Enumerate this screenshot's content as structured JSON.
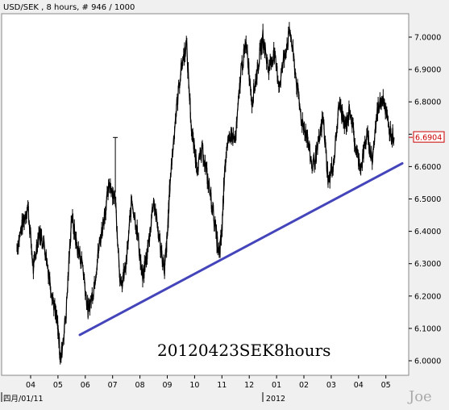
{
  "header": {
    "title": "USD/SEK , 8 hours, # 946 / 1000"
  },
  "annotation": {
    "caption": "20120423SEK8hours",
    "watermark": "Joe"
  },
  "colors": {
    "background": "#f0f0f0",
    "plot_background": "#ffffff",
    "price": "#000000",
    "trendline": "#4444bb",
    "last_price_box": "#cc0000"
  },
  "chart_data": {
    "type": "line",
    "title": "USD/SEK , 8 hours, # 946 / 1000",
    "xlabel": "",
    "ylabel": "",
    "ylim": [
      5.96,
      7.05
    ],
    "y_ticks": [
      "6.0000",
      "6.1000",
      "6.2000",
      "6.3000",
      "6.4000",
      "6.5000",
      "6.6000",
      "6.7000",
      "6.8000",
      "6.9000",
      "7.0000"
    ],
    "x_tick_labels": [
      "04",
      "05",
      "06",
      "07",
      "08",
      "09",
      "10",
      "11",
      "12",
      "01",
      "02",
      "03",
      "04",
      "05"
    ],
    "x_group_labels": [
      "四月/01/11",
      "2012"
    ],
    "last_price_label": "6.6904",
    "last_price": 6.6904,
    "grid": false,
    "series": [
      {
        "label": "USD/SEK",
        "x": [
          3.5,
          3.7,
          3.9,
          4.1,
          4.3,
          4.5,
          4.7,
          4.9,
          5.0,
          5.1,
          5.3,
          5.5,
          5.7,
          5.9,
          6.1,
          6.3,
          6.5,
          6.7,
          6.9,
          7.1,
          7.3,
          7.5,
          7.7,
          7.9,
          8.1,
          8.3,
          8.5,
          8.7,
          8.9,
          9.0,
          9.1,
          9.3,
          9.5,
          9.7,
          9.9,
          10.1,
          10.3,
          10.5,
          10.7,
          10.9,
          11.0,
          11.1,
          11.3,
          11.5,
          11.7,
          11.9,
          12.1,
          12.3,
          12.5,
          12.7,
          12.9,
          13.1,
          13.3,
          13.5,
          13.7,
          13.9,
          14.1,
          14.3,
          14.5,
          14.7,
          14.9,
          15.1,
          15.3,
          15.5,
          15.7,
          15.9,
          16.1,
          16.3,
          16.5,
          16.7,
          16.9,
          17.1,
          17.3
        ],
        "y": [
          6.35,
          6.42,
          6.48,
          6.28,
          6.4,
          6.36,
          6.25,
          6.15,
          6.1,
          6.0,
          6.15,
          6.45,
          6.35,
          6.3,
          6.15,
          6.22,
          6.35,
          6.45,
          6.55,
          6.5,
          6.22,
          6.3,
          6.5,
          6.4,
          6.25,
          6.35,
          6.5,
          6.38,
          6.28,
          6.38,
          6.55,
          6.75,
          6.9,
          6.98,
          6.7,
          6.6,
          6.65,
          6.55,
          6.45,
          6.32,
          6.4,
          6.6,
          6.7,
          6.68,
          6.9,
          6.98,
          6.8,
          6.9,
          7.0,
          6.9,
          6.95,
          6.85,
          6.95,
          7.02,
          6.88,
          6.75,
          6.7,
          6.6,
          6.65,
          6.75,
          6.55,
          6.62,
          6.8,
          6.72,
          6.78,
          6.65,
          6.6,
          6.7,
          6.62,
          6.78,
          6.82,
          6.72,
          6.69
        ]
      },
      {
        "label": "Trendline",
        "x": [
          5.8,
          17.6
        ],
        "y": [
          6.08,
          6.61
        ]
      }
    ]
  }
}
